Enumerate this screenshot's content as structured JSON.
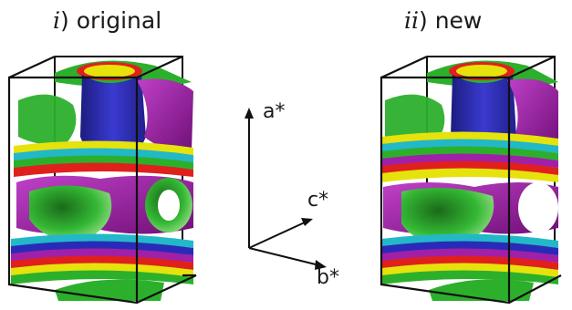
{
  "panels": [
    {
      "numeral": "i",
      "rest": ") original"
    },
    {
      "numeral": "ii",
      "rest": ") new"
    }
  ],
  "axes": {
    "a": "a*",
    "b": "b*",
    "c": "c*"
  },
  "colors": {
    "blue": "#2a2ab8",
    "magenta": "#a020a8",
    "green": "#2cb02c",
    "yellow": "#e6e20c",
    "red": "#e0201c",
    "cyan": "#22b8c8",
    "outline": "#111111"
  },
  "icons": [
    "reciprocal-axes-icon"
  ]
}
